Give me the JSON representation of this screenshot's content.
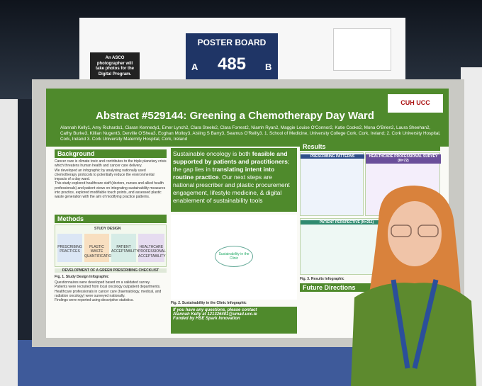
{
  "sign": {
    "note": "An ASCO photographer will take photos for the Digital Program.",
    "label": "POSTER BOARD",
    "left": "A",
    "number": "485",
    "right": "B"
  },
  "poster": {
    "title": "Abstract #529144: Greening a Chemotherapy Day Ward",
    "authors": "Alannah Kelly1, Amy Richards1, Ciaran Kennedy1, Emer Lynch2, Clara Steele2, Clara Forrest2, Niamh Ryan2, Maggie Louise O'Connor2, Katie Cooke2, Mona O'Brien2, Laura Sheehan2, Cathy Burke3, Killian Nugent3, Derville O'Shea3, Eoghan Molloy3, Aisling S Barry3, Seamus O'Reilly3. 1. School of Medicine, University College Cork, Cork, Ireland; 2. Cork University Hospital, Cork, Ireland 3. Cork University Maternity Hospital, Cork, Ireland",
    "logo": "CUH UCC",
    "background": {
      "heading": "Background",
      "bullets": [
        "Cancer care is climate toxic and contributes to the triple planetary crisis which threatens human health and cancer care delivery.",
        "We developed an infographic by analysing nationally used chemotherapy protocols to potentially reduce the environmental impacts of a day ward.",
        "This study explored healthcare staff (doctors, nurses and allied health professionals) and patient views on integrating sustainability measures into practice, explored modifiable touch points, and assessed plastic waste generation with the aim of modifying practice patterns."
      ]
    },
    "methods": {
      "heading": "Methods",
      "design": "STUDY DESIGN",
      "steps": [
        "PRESCRIBING PRACTICES",
        "PLASTIC WASTE QUANTIFICATION",
        "PATIENT ACCEPTABILITY",
        "HEALTHCARE PROFESSIONAL ACCEPTABILITY"
      ],
      "checklist": "DEVELOPMENT OF A GREEN PRESCRIBING CHECKLIST",
      "caption": "Fig. 1. Study Design Infographic",
      "bullets": [
        "Questionnaires were developed based on a validated survey.",
        "Patients were recruited from local oncology outpatient departments.",
        "Healthcare professionals in cancer care (haematology, medical, and radiation oncology) were surveyed nationally.",
        "Findings were reported using descriptive statistics."
      ]
    },
    "highlight": {
      "a": "Sustainable oncology is both ",
      "b": "feasible and supported by patients and practitioners",
      "c": "; the gap lies in ",
      "d": "translating intent into routine practice",
      "e": ". Our next steps are national prescriber and plastic procurement engagement, lifestyle medicine, & digital enablement of sustainability tools"
    },
    "clinic": {
      "center": "Sustainability in the Clinic",
      "caption": "Fig. 2. Sustainability in the Clinic Infographic"
    },
    "contact": {
      "line1": "If you have any questions, please contact",
      "line2": "Alannah Kelly at 121326401@umail.ucc.ie",
      "line3": "Funded by HSE Spark Innovation"
    },
    "results": {
      "heading": "Results",
      "patterns": "PRESCRIBING PATTERNS",
      "survey": "HEALTHCARE PROFESSIONAL SURVEY (N=72)",
      "patient": "PATIENT PERSPECTIVE (N=211)",
      "caption": "Fig. 3. Results Infographic",
      "future": "Future Directions"
    }
  }
}
